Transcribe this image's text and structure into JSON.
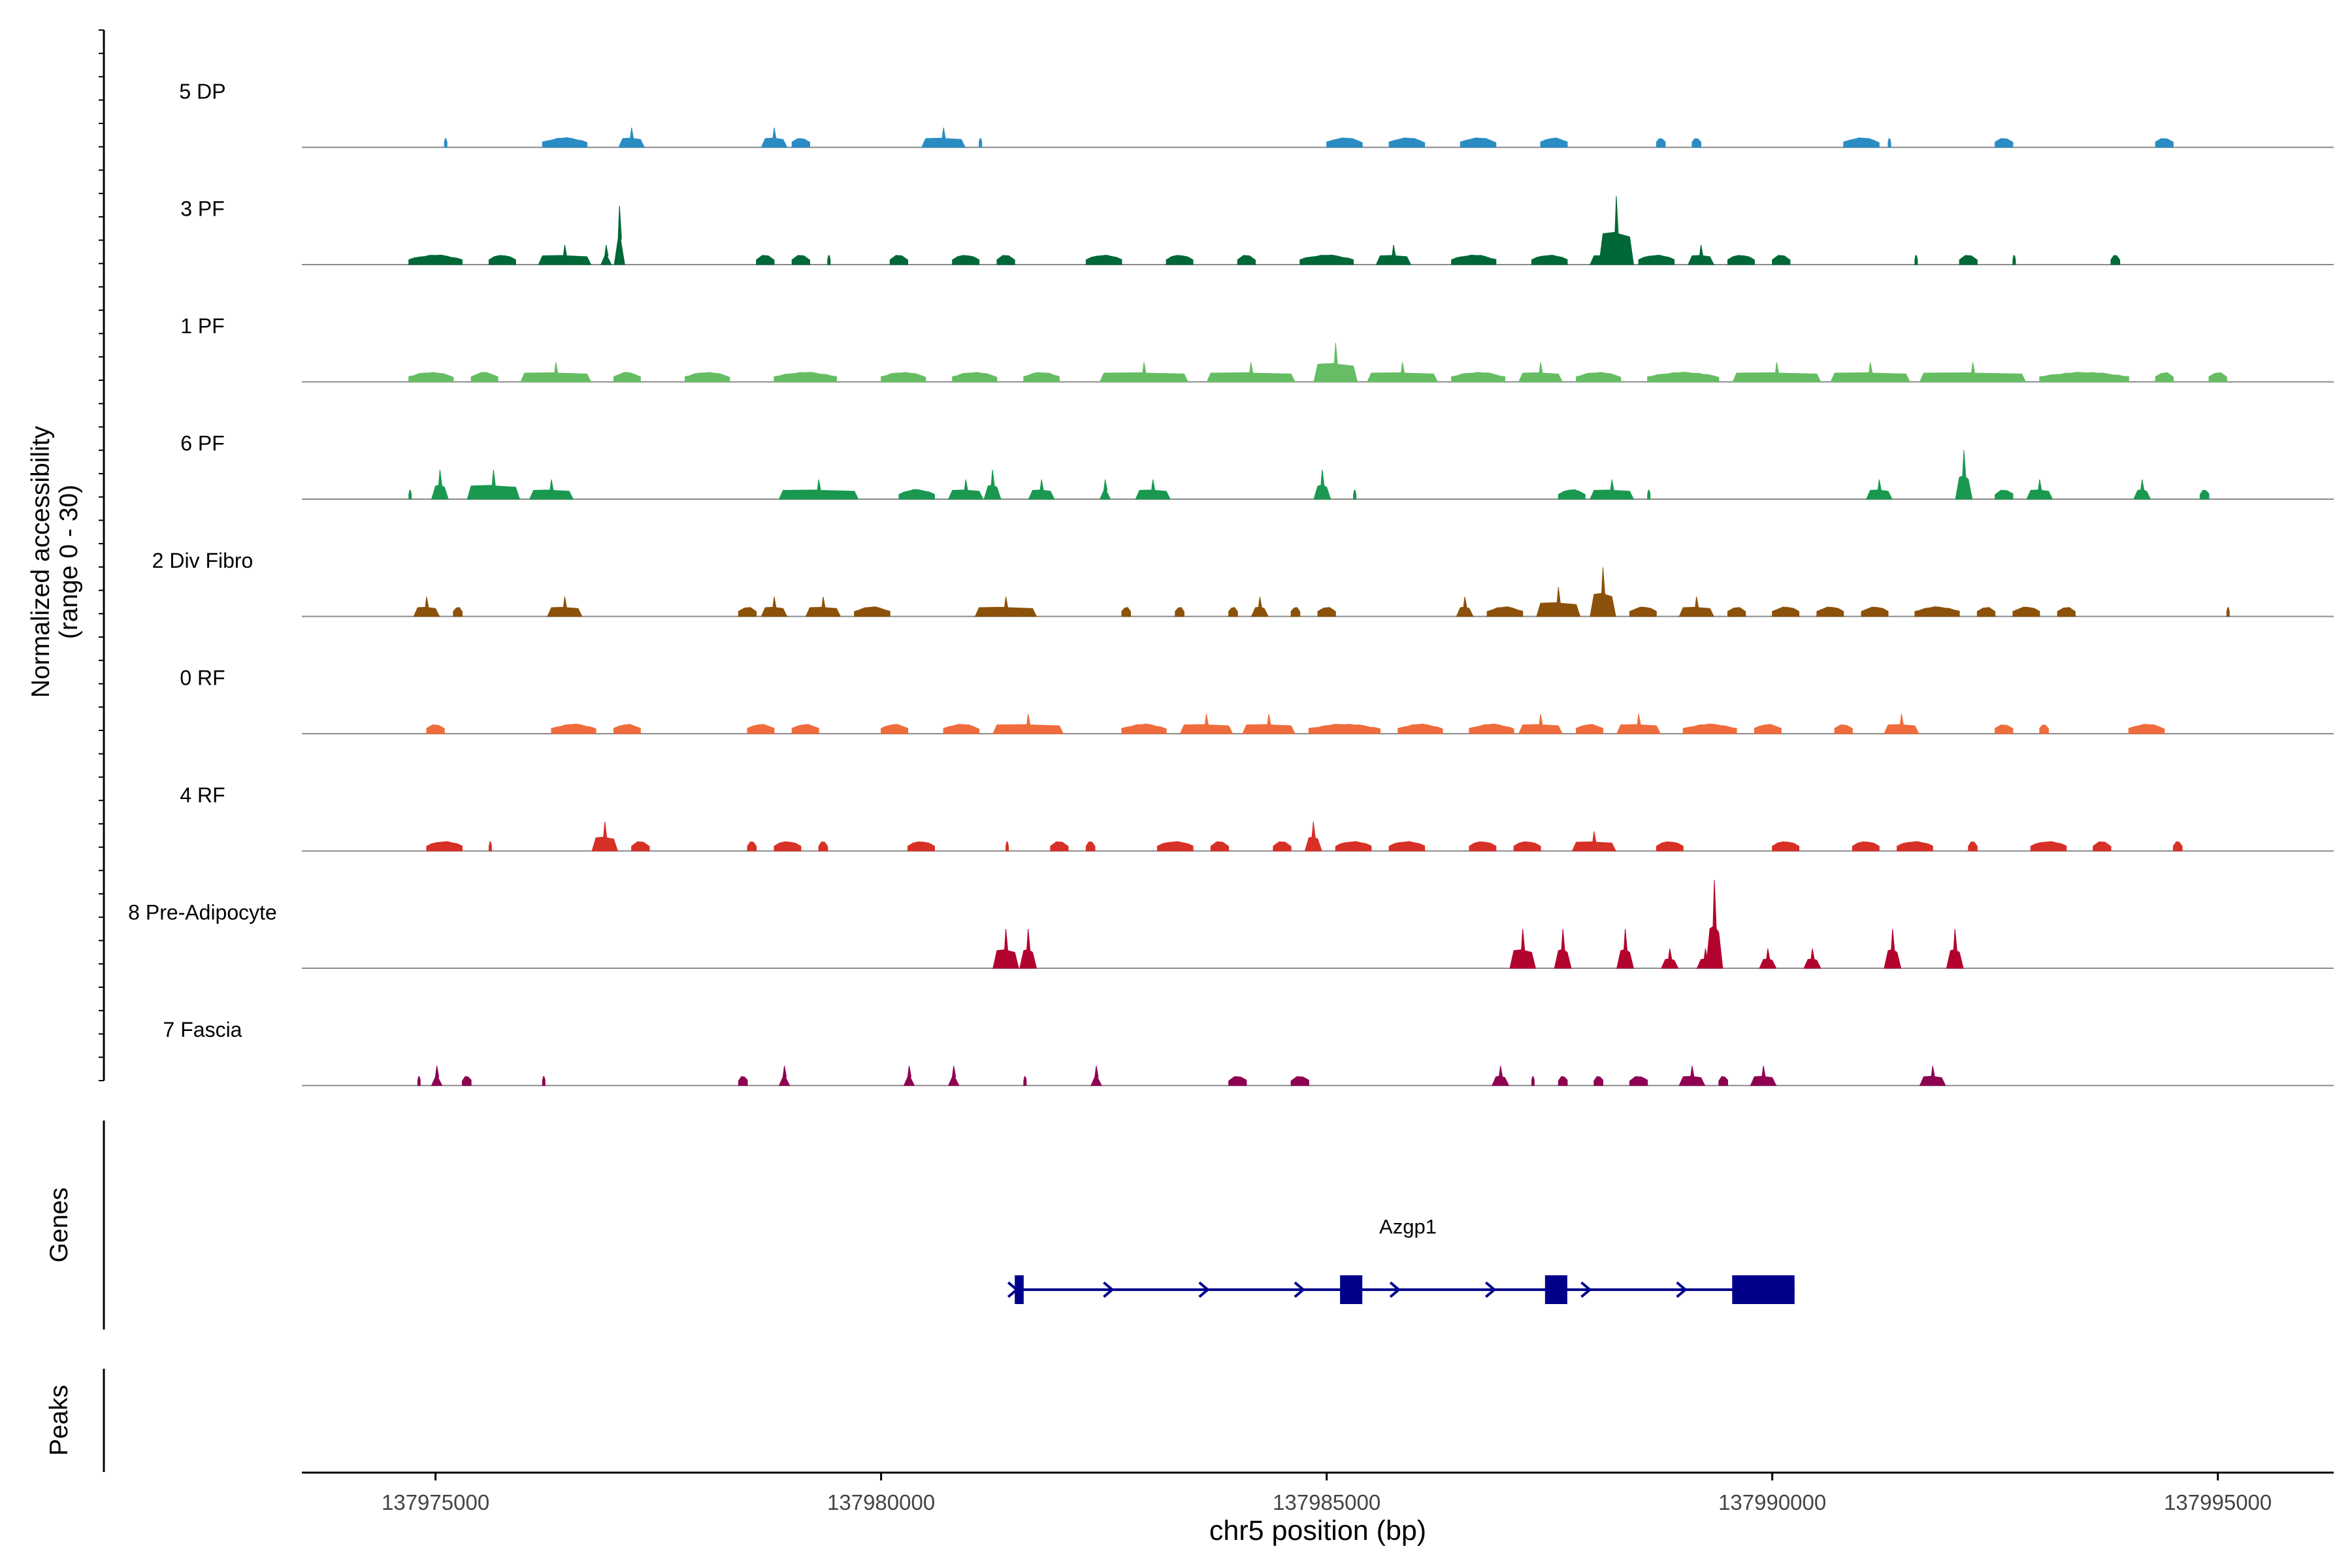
{
  "chart_data": {
    "type": "area",
    "title": "",
    "ylabel_line1": "Normalized accessibility",
    "ylabel_line2": "(range 0 - 30)",
    "ylim": [
      0,
      30
    ],
    "xlabel": "chr5 position (bp)",
    "xlim": [
      137973500,
      137996300
    ],
    "xticks": [
      137975000,
      137980000,
      137985000,
      137990000,
      137995000
    ],
    "xtick_labels": [
      "137975000",
      "137980000",
      "137985000",
      "137990000",
      "137995000"
    ],
    "tracks": [
      {
        "name": "5 DP",
        "color": "#2b8cc4",
        "peaks": [
          [
            137975100,
            137975100,
            3
          ],
          [
            137976200,
            137976700,
            3
          ],
          [
            137977100,
            137977300,
            6
          ],
          [
            137978700,
            137978900,
            6
          ],
          [
            137979000,
            137979200,
            3
          ],
          [
            137980500,
            137980900,
            6
          ],
          [
            137981100,
            137981100,
            3
          ],
          [
            137985000,
            137985400,
            3
          ],
          [
            137985700,
            137986100,
            3
          ],
          [
            137986500,
            137986900,
            3
          ],
          [
            137987400,
            137987700,
            3
          ],
          [
            137988700,
            137988800,
            3
          ],
          [
            137989100,
            137989200,
            3
          ],
          [
            137990800,
            137991200,
            3
          ],
          [
            137991300,
            137991300,
            3
          ],
          [
            137992500,
            137992700,
            3
          ],
          [
            137994300,
            137994500,
            3
          ]
        ]
      },
      {
        "name": "3 PF",
        "color": "#006837",
        "peaks": [
          [
            137974700,
            137975300,
            3
          ],
          [
            137975600,
            137975900,
            3
          ],
          [
            137976200,
            137976700,
            6
          ],
          [
            137976900,
            137976900,
            6
          ],
          [
            137977050,
            137977050,
            18
          ],
          [
            137978600,
            137978800,
            3
          ],
          [
            137979000,
            137979200,
            3
          ],
          [
            137979400,
            137979400,
            3
          ],
          [
            137980100,
            137980300,
            3
          ],
          [
            137980800,
            137981100,
            3
          ],
          [
            137981300,
            137981500,
            3
          ],
          [
            137982300,
            137982700,
            3
          ],
          [
            137983200,
            137983500,
            3
          ],
          [
            137984000,
            137984200,
            3
          ],
          [
            137984700,
            137985300,
            3
          ],
          [
            137985600,
            137985900,
            6
          ],
          [
            137986400,
            137986900,
            3
          ],
          [
            137987300,
            137987700,
            3
          ],
          [
            137988000,
            137988400,
            6
          ],
          [
            137988100,
            137988400,
            21
          ],
          [
            137988500,
            137988900,
            3
          ],
          [
            137989100,
            137989300,
            6
          ],
          [
            137989500,
            137989800,
            3
          ],
          [
            137990000,
            137990200,
            3
          ],
          [
            137991600,
            137991600,
            3
          ],
          [
            137992100,
            137992300,
            3
          ],
          [
            137992700,
            137992700,
            3
          ],
          [
            137993800,
            137993900,
            3
          ]
        ]
      },
      {
        "name": "1 PF",
        "color": "#66bd63",
        "peaks": [
          [
            137974700,
            137975200,
            3
          ],
          [
            137975400,
            137975700,
            3
          ],
          [
            137976000,
            137976700,
            6
          ],
          [
            137977000,
            137977300,
            3
          ],
          [
            137977800,
            137978300,
            3
          ],
          [
            137978800,
            137979500,
            3
          ],
          [
            137980000,
            137980500,
            3
          ],
          [
            137980800,
            137981300,
            3
          ],
          [
            137981600,
            137982000,
            3
          ],
          [
            137982500,
            137983400,
            6
          ],
          [
            137983700,
            137984600,
            6
          ],
          [
            137984900,
            137985300,
            12
          ],
          [
            137985500,
            137986200,
            6
          ],
          [
            137986400,
            137987000,
            3
          ],
          [
            137987200,
            137987600,
            6
          ],
          [
            137987800,
            137988300,
            3
          ],
          [
            137988600,
            137989400,
            3
          ],
          [
            137989600,
            137990500,
            6
          ],
          [
            137990700,
            137991500,
            6
          ],
          [
            137991700,
            137992800,
            6
          ],
          [
            137993000,
            137994000,
            3
          ],
          [
            137994300,
            137994500,
            3
          ],
          [
            137994900,
            137995100,
            3
          ]
        ]
      },
      {
        "name": "6 PF",
        "color": "#1a9850",
        "peaks": [
          [
            137974700,
            137974700,
            3
          ],
          [
            137975000,
            137975100,
            9
          ],
          [
            137975400,
            137975900,
            9
          ],
          [
            137976100,
            137976500,
            6
          ],
          [
            137978900,
            137979700,
            6
          ],
          [
            137980200,
            137980600,
            3
          ],
          [
            137980800,
            137981100,
            6
          ],
          [
            137981200,
            137981300,
            9
          ],
          [
            137981700,
            137981900,
            6
          ],
          [
            137982500,
            137982500,
            6
          ],
          [
            137982900,
            137983200,
            6
          ],
          [
            137984900,
            137985000,
            9
          ],
          [
            137985300,
            137985300,
            3
          ],
          [
            137987600,
            137987900,
            3
          ],
          [
            137988000,
            137988400,
            6
          ],
          [
            137988600,
            137988600,
            3
          ],
          [
            137991100,
            137991300,
            6
          ],
          [
            137992100,
            137992200,
            15
          ],
          [
            137992500,
            137992700,
            3
          ],
          [
            137992900,
            137993100,
            6
          ],
          [
            137994100,
            137994200,
            6
          ],
          [
            137994800,
            137994900,
            3
          ]
        ]
      },
      {
        "name": "2 Div Fibro",
        "color": "#8c510a",
        "peaks": [
          [
            137974800,
            137975000,
            6
          ],
          [
            137975200,
            137975300,
            3
          ],
          [
            137976300,
            137976600,
            6
          ],
          [
            137978400,
            137978600,
            3
          ],
          [
            137978700,
            137978900,
            6
          ],
          [
            137979200,
            137979500,
            6
          ],
          [
            137979700,
            137980100,
            3
          ],
          [
            137981100,
            137981700,
            6
          ],
          [
            137982700,
            137982800,
            3
          ],
          [
            137983300,
            137983400,
            3
          ],
          [
            137983900,
            137984000,
            3
          ],
          [
            137984200,
            137984300,
            6
          ],
          [
            137984600,
            137984700,
            3
          ],
          [
            137984900,
            137985100,
            3
          ],
          [
            137986500,
            137986600,
            6
          ],
          [
            137986800,
            137987200,
            3
          ],
          [
            137987400,
            137987800,
            9
          ],
          [
            137988000,
            137988200,
            15
          ],
          [
            137988400,
            137988700,
            3
          ],
          [
            137989000,
            137989300,
            6
          ],
          [
            137989500,
            137989700,
            3
          ],
          [
            137990000,
            137990300,
            3
          ],
          [
            137990500,
            137990800,
            3
          ],
          [
            137991000,
            137991300,
            3
          ],
          [
            137991600,
            137992100,
            3
          ],
          [
            137992300,
            137992500,
            3
          ],
          [
            137992700,
            137993000,
            3
          ],
          [
            137993200,
            137993400,
            3
          ],
          [
            137995100,
            137995100,
            3
          ]
        ]
      },
      {
        "name": "0 RF",
        "color": "#ef6c3c",
        "peaks": [
          [
            137974900,
            137975100,
            3
          ],
          [
            137976300,
            137976800,
            3
          ],
          [
            137977000,
            137977300,
            3
          ],
          [
            137978500,
            137978800,
            3
          ],
          [
            137979000,
            137979300,
            3
          ],
          [
            137980000,
            137980300,
            3
          ],
          [
            137980700,
            137981100,
            3
          ],
          [
            137981300,
            137982000,
            6
          ],
          [
            137982700,
            137983200,
            3
          ],
          [
            137983400,
            137983900,
            6
          ],
          [
            137984100,
            137984600,
            6
          ],
          [
            137984800,
            137985600,
            3
          ],
          [
            137985800,
            137986300,
            3
          ],
          [
            137986600,
            137987100,
            3
          ],
          [
            137987200,
            137987600,
            6
          ],
          [
            137987800,
            137988100,
            3
          ],
          [
            137988300,
            137988700,
            6
          ],
          [
            137989000,
            137989600,
            3
          ],
          [
            137989800,
            137990100,
            3
          ],
          [
            137990700,
            137990900,
            3
          ],
          [
            137991300,
            137991600,
            6
          ],
          [
            137992500,
            137992700,
            3
          ],
          [
            137993000,
            137993100,
            3
          ],
          [
            137994000,
            137994400,
            3
          ]
        ]
      },
      {
        "name": "4 RF",
        "color": "#d73027",
        "peaks": [
          [
            137974900,
            137975300,
            3
          ],
          [
            137975600,
            137975600,
            3
          ],
          [
            137976800,
            137977000,
            9
          ],
          [
            137977200,
            137977400,
            3
          ],
          [
            137978500,
            137978600,
            3
          ],
          [
            137978800,
            137979100,
            3
          ],
          [
            137979300,
            137979400,
            3
          ],
          [
            137980300,
            137980600,
            3
          ],
          [
            137981400,
            137981400,
            3
          ],
          [
            137981900,
            137982100,
            3
          ],
          [
            137982300,
            137982400,
            3
          ],
          [
            137983100,
            137983500,
            3
          ],
          [
            137983700,
            137983900,
            3
          ],
          [
            137984400,
            137984600,
            3
          ],
          [
            137984800,
            137984900,
            9
          ],
          [
            137985100,
            137985500,
            3
          ],
          [
            137985700,
            137986100,
            3
          ],
          [
            137986600,
            137986900,
            3
          ],
          [
            137987100,
            137987400,
            3
          ],
          [
            137987800,
            137988200,
            6
          ],
          [
            137988700,
            137989000,
            3
          ],
          [
            137990000,
            137990300,
            3
          ],
          [
            137990900,
            137991200,
            3
          ],
          [
            137991400,
            137991800,
            3
          ],
          [
            137992200,
            137992300,
            3
          ],
          [
            137992900,
            137993300,
            3
          ],
          [
            137993600,
            137993800,
            3
          ],
          [
            137994500,
            137994600,
            3
          ]
        ]
      },
      {
        "name": "8 Pre-Adipocyte",
        "color": "#b2032f",
        "peaks": [
          [
            137981300,
            137981500,
            12
          ],
          [
            137981600,
            137981700,
            12
          ],
          [
            137987100,
            137987300,
            12
          ],
          [
            137987600,
            137987700,
            12
          ],
          [
            137988300,
            137988400,
            12
          ],
          [
            137988800,
            137988900,
            6
          ],
          [
            137989200,
            137989300,
            6
          ],
          [
            137989300,
            137989400,
            27
          ],
          [
            137989900,
            137990000,
            6
          ],
          [
            137990400,
            137990500,
            6
          ],
          [
            137991300,
            137991400,
            12
          ],
          [
            137992000,
            137992100,
            12
          ]
        ]
      },
      {
        "name": "7 Fascia",
        "color": "#8e0152",
        "peaks": [
          [
            137974800,
            137974800,
            3
          ],
          [
            137975000,
            137975000,
            6
          ],
          [
            137975300,
            137975400,
            3
          ],
          [
            137976200,
            137976200,
            3
          ],
          [
            137978400,
            137978500,
            3
          ],
          [
            137978900,
            137978900,
            6
          ],
          [
            137980300,
            137980300,
            6
          ],
          [
            137980800,
            137980800,
            6
          ],
          [
            137981600,
            137981600,
            3
          ],
          [
            137982400,
            137982400,
            6
          ],
          [
            137983900,
            137984100,
            3
          ],
          [
            137984600,
            137984800,
            3
          ],
          [
            137986900,
            137987000,
            6
          ],
          [
            137987300,
            137987300,
            3
          ],
          [
            137987600,
            137987700,
            3
          ],
          [
            137988000,
            137988100,
            3
          ],
          [
            137988400,
            137988600,
            3
          ],
          [
            137989000,
            137989200,
            6
          ],
          [
            137989400,
            137989500,
            3
          ],
          [
            137989800,
            137990000,
            6
          ],
          [
            137991700,
            137991900,
            6
          ]
        ]
      }
    ],
    "genes_label": "Genes",
    "peaks_label": "Peaks",
    "gene": {
      "name": "Azgp1",
      "color": "#00008b",
      "start": 137981500,
      "end": 137990250,
      "strand": "+",
      "exons": [
        [
          137981500,
          137981600
        ],
        [
          137985150,
          137985400
        ],
        [
          137987450,
          137987700
        ],
        [
          137989550,
          137990250
        ]
      ]
    }
  }
}
